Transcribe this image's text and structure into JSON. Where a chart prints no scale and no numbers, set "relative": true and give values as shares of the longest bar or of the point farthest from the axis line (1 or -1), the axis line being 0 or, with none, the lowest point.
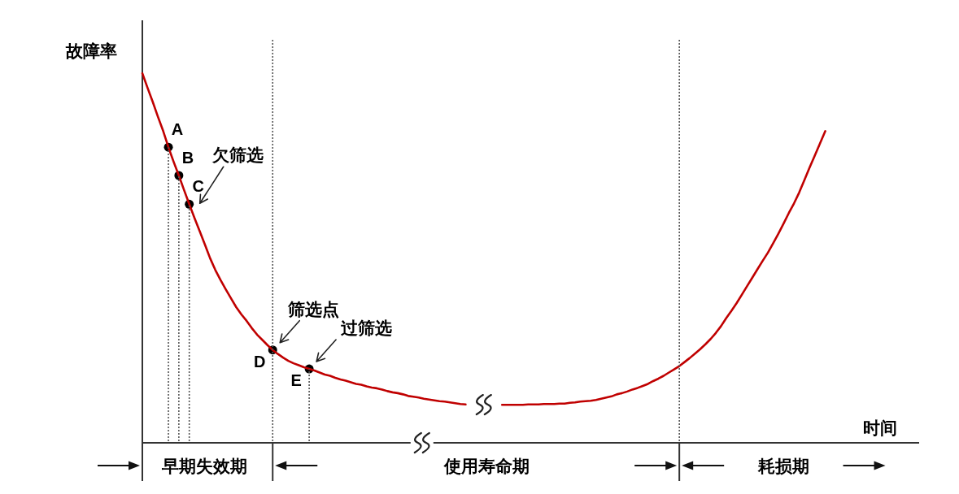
{
  "chart_data": {
    "type": "line",
    "relative": true,
    "tick_labels": "x",
    "ylabel": "故障率",
    "xlabel": "时间",
    "categories": [
      null,
      null,
      null,
      null,
      null,
      null,
      null,
      null,
      null,
      null,
      null,
      null,
      "早期失效期",
      null,
      null,
      null,
      null,
      null,
      null,
      null,
      null,
      null,
      null,
      null,
      null,
      null,
      null,
      null,
      null,
      null,
      null,
      null,
      null,
      null,
      null,
      null,
      null,
      null,
      null,
      null,
      null,
      null,
      null,
      null,
      null,
      null,
      null,
      null,
      null,
      null,
      null,
      null,
      null,
      null,
      null,
      null,
      null,
      null,
      null,
      null,
      null,
      null,
      null,
      null,
      null,
      null,
      "使用寿命期",
      null,
      null,
      null,
      null,
      null,
      null,
      null,
      null,
      null,
      null,
      null,
      null,
      null,
      null,
      null,
      null,
      null,
      null,
      null,
      null,
      null,
      null,
      null,
      null,
      null,
      null,
      null,
      null,
      null,
      null,
      null,
      null,
      null,
      null,
      null,
      null,
      null,
      null,
      null,
      null,
      null,
      null,
      null,
      null,
      null,
      null,
      null,
      null,
      null,
      null,
      null,
      null,
      null,
      null,
      null,
      null,
      "耗损期",
      null,
      null,
      null,
      null,
      null,
      null,
      null,
      null,
      null,
      null,
      null,
      null,
      null,
      null,
      null,
      null,
      null,
      null,
      null,
      null,
      null,
      null,
      null,
      null,
      null,
      null
    ],
    "series": [
      {
        "color": "#c00000",
        "values": [
          0.915,
          0.879,
          0.844,
          0.807,
          0.772,
          0.732,
          0.696,
          0.662,
          0.626,
          0.591,
          0.557,
          0.524,
          0.491,
          0.457,
          0.428,
          0.403,
          0.38,
          0.358,
          0.336,
          0.318,
          0.302,
          0.284,
          0.268,
          0.255,
          0.242,
          0.23,
          0.22,
          0.211,
          0.203,
          0.197,
          0.192,
          0.187,
          0.183,
          0.179,
          0.174,
          0.169,
          0.166,
          0.161,
          0.157,
          0.154,
          0.15,
          0.146,
          0.144,
          0.14,
          0.137,
          0.135,
          0.132,
          0.128,
          0.125,
          0.123,
          0.12,
          0.116,
          0.114,
          0.112,
          0.109,
          0.107,
          0.105,
          0.103,
          0.102,
          0.1,
          0.098,
          0.096,
          0.095,
          null,
          null,
          null,
          null,
          null,
          null,
          0.094,
          0.094,
          0.094,
          0.094,
          0.094,
          0.095,
          0.095,
          0.095,
          0.096,
          0.096,
          0.096,
          0.097,
          0.097,
          0.099,
          0.1,
          0.102,
          0.103,
          0.104,
          0.106,
          0.109,
          0.112,
          0.115,
          0.12,
          0.123,
          0.127,
          0.132,
          0.136,
          0.141,
          0.146,
          0.153,
          0.159,
          0.166,
          0.174,
          0.182,
          0.19,
          0.2,
          0.21,
          0.221,
          0.232,
          0.244,
          0.257,
          0.272,
          0.289,
          0.309,
          0.327,
          0.346,
          0.367,
          0.388,
          0.409,
          0.43,
          0.451,
          0.471,
          0.494,
          0.518,
          0.543,
          0.569,
          0.593,
          0.62,
          0.651,
          0.682,
          0.712,
          0.742,
          0.772,
          null,
          null,
          null,
          null,
          null,
          null,
          null,
          null,
          null,
          null,
          null,
          null,
          null,
          null,
          null,
          null,
          null,
          null
        ]
      },
      {
        "type": "bar",
        "name": "A",
        "color": "#555555",
        "line_style": "dotted",
        "values": [
          null,
          null,
          null,
          null,
          null,
          0.732,
          null,
          null,
          null,
          null,
          null,
          null,
          null,
          null,
          null,
          null,
          null,
          null,
          null,
          null,
          null,
          null,
          null,
          null,
          null,
          null,
          null,
          null,
          null,
          null,
          null,
          null,
          null,
          null,
          null,
          null,
          null,
          null,
          null,
          null,
          null,
          null,
          null,
          null,
          null,
          null,
          null,
          null,
          null,
          null,
          null,
          null,
          null,
          null,
          null,
          null,
          null,
          null,
          null,
          null,
          null,
          null,
          null,
          null,
          null,
          null,
          null,
          null,
          null,
          null,
          null,
          null,
          null,
          null,
          null,
          null,
          null,
          null,
          null,
          null,
          null,
          null,
          null,
          null,
          null,
          null,
          null,
          null,
          null,
          null,
          null,
          null,
          null,
          null,
          null,
          null,
          null,
          null,
          null,
          null,
          null,
          null,
          null,
          null,
          null,
          null,
          null,
          null,
          null,
          null,
          null,
          null,
          null,
          null,
          null,
          null,
          null,
          null,
          null,
          null,
          null,
          null,
          null,
          null,
          null,
          null,
          null,
          null,
          null,
          null,
          null,
          null,
          null,
          null,
          null,
          null,
          null,
          null,
          null,
          null,
          null,
          null,
          null,
          null,
          null,
          null,
          null,
          null,
          null,
          null
        ]
      },
      {
        "type": "bar",
        "name": "B",
        "color": "#555555",
        "line_style": "dotted",
        "values": [
          null,
          null,
          null,
          null,
          null,
          null,
          null,
          0.662,
          null,
          null,
          null,
          null,
          null,
          null,
          null,
          null,
          null,
          null,
          null,
          null,
          null,
          null,
          null,
          null,
          null,
          null,
          null,
          null,
          null,
          null,
          null,
          null,
          null,
          null,
          null,
          null,
          null,
          null,
          null,
          null,
          null,
          null,
          null,
          null,
          null,
          null,
          null,
          null,
          null,
          null,
          null,
          null,
          null,
          null,
          null,
          null,
          null,
          null,
          null,
          null,
          null,
          null,
          null,
          null,
          null,
          null,
          null,
          null,
          null,
          null,
          null,
          null,
          null,
          null,
          null,
          null,
          null,
          null,
          null,
          null,
          null,
          null,
          null,
          null,
          null,
          null,
          null,
          null,
          null,
          null,
          null,
          null,
          null,
          null,
          null,
          null,
          null,
          null,
          null,
          null,
          null,
          null,
          null,
          null,
          null,
          null,
          null,
          null,
          null,
          null,
          null,
          null,
          null,
          null,
          null,
          null,
          null,
          null,
          null,
          null,
          null,
          null,
          null,
          null,
          null,
          null,
          null,
          null,
          null,
          null,
          null,
          null,
          null,
          null,
          null,
          null,
          null,
          null,
          null,
          null,
          null,
          null,
          null,
          null,
          null,
          null,
          null,
          null,
          null,
          null
        ]
      },
      {
        "type": "bar",
        "name": "C",
        "color": "#555555",
        "line_style": "dotted",
        "values": [
          null,
          null,
          null,
          null,
          null,
          null,
          null,
          null,
          null,
          0.591,
          null,
          null,
          null,
          null,
          null,
          null,
          null,
          null,
          null,
          null,
          null,
          null,
          null,
          null,
          null,
          null,
          null,
          null,
          null,
          null,
          null,
          null,
          null,
          null,
          null,
          null,
          null,
          null,
          null,
          null,
          null,
          null,
          null,
          null,
          null,
          null,
          null,
          null,
          null,
          null,
          null,
          null,
          null,
          null,
          null,
          null,
          null,
          null,
          null,
          null,
          null,
          null,
          null,
          null,
          null,
          null,
          null,
          null,
          null,
          null,
          null,
          null,
          null,
          null,
          null,
          null,
          null,
          null,
          null,
          null,
          null,
          null,
          null,
          null,
          null,
          null,
          null,
          null,
          null,
          null,
          null,
          null,
          null,
          null,
          null,
          null,
          null,
          null,
          null,
          null,
          null,
          null,
          null,
          null,
          null,
          null,
          null,
          null,
          null,
          null,
          null,
          null,
          null,
          null,
          null,
          null,
          null,
          null,
          null,
          null,
          null,
          null,
          null,
          null,
          null,
          null,
          null,
          null,
          null,
          null,
          null,
          null,
          null,
          null,
          null,
          null,
          null,
          null,
          null,
          null,
          null,
          null,
          null,
          null,
          null,
          null,
          null,
          null,
          null,
          null
        ]
      },
      {
        "type": "bar",
        "name": "D",
        "color": "#555555",
        "line_style": "dotted",
        "values": [
          null,
          null,
          null,
          null,
          null,
          null,
          null,
          null,
          null,
          null,
          null,
          null,
          null,
          null,
          null,
          null,
          null,
          null,
          null,
          null,
          null,
          null,
          null,
          null,
          null,
          1,
          null,
          null,
          null,
          null,
          null,
          null,
          null,
          null,
          null,
          null,
          null,
          null,
          null,
          null,
          null,
          null,
          null,
          null,
          null,
          null,
          null,
          null,
          null,
          null,
          null,
          null,
          null,
          null,
          null,
          null,
          null,
          null,
          null,
          null,
          null,
          null,
          null,
          null,
          null,
          null,
          null,
          null,
          null,
          null,
          null,
          null,
          null,
          null,
          null,
          null,
          null,
          null,
          null,
          null,
          null,
          null,
          null,
          null,
          null,
          null,
          null,
          null,
          null,
          null,
          null,
          null,
          null,
          null,
          null,
          null,
          null,
          null,
          null,
          null,
          null,
          null,
          null,
          null,
          null,
          null,
          null,
          null,
          null,
          null,
          null,
          null,
          null,
          null,
          null,
          null,
          null,
          null,
          null,
          null,
          null,
          null,
          null,
          null,
          null,
          null,
          null,
          null,
          null,
          null,
          null,
          null,
          null,
          null,
          null,
          null,
          null,
          null,
          null,
          null,
          null,
          null,
          null,
          null,
          null,
          null,
          null,
          null,
          null,
          null
        ]
      },
      {
        "type": "bar",
        "name": "E",
        "color": "#555555",
        "line_style": "dotted",
        "values": [
          null,
          null,
          null,
          null,
          null,
          null,
          null,
          null,
          null,
          null,
          null,
          null,
          null,
          null,
          null,
          null,
          null,
          null,
          null,
          null,
          null,
          null,
          null,
          null,
          null,
          null,
          null,
          null,
          null,
          null,
          null,
          null,
          0.183,
          null,
          null,
          null,
          null,
          null,
          null,
          null,
          null,
          null,
          null,
          null,
          null,
          null,
          null,
          null,
          null,
          null,
          null,
          null,
          null,
          null,
          null,
          null,
          null,
          null,
          null,
          null,
          null,
          null,
          null,
          null,
          null,
          null,
          null,
          null,
          null,
          null,
          null,
          null,
          null,
          null,
          null,
          null,
          null,
          null,
          null,
          null,
          null,
          null,
          null,
          null,
          null,
          null,
          null,
          null,
          null,
          null,
          null,
          null,
          null,
          null,
          null,
          null,
          null,
          null,
          null,
          null,
          null,
          null,
          null,
          null,
          null,
          null,
          null,
          null,
          null,
          null,
          null,
          null,
          null,
          null,
          null,
          null,
          null,
          null,
          null,
          null,
          null,
          null,
          null,
          null,
          null,
          null,
          null,
          null,
          null,
          null,
          null,
          null,
          null,
          null,
          null,
          null,
          null,
          null,
          null,
          null,
          null,
          null,
          null,
          null,
          null,
          null,
          null,
          null,
          null,
          null
        ]
      },
      {
        "type": "bar",
        "color": "#555555",
        "line_style": "dotted",
        "values": [
          null,
          null,
          null,
          null,
          null,
          null,
          null,
          null,
          null,
          null,
          null,
          null,
          null,
          null,
          null,
          null,
          null,
          null,
          null,
          null,
          null,
          null,
          null,
          null,
          null,
          null,
          null,
          null,
          null,
          null,
          null,
          null,
          null,
          null,
          null,
          null,
          null,
          null,
          null,
          null,
          null,
          null,
          null,
          null,
          null,
          null,
          null,
          null,
          null,
          null,
          null,
          null,
          null,
          null,
          null,
          null,
          null,
          null,
          null,
          null,
          null,
          null,
          null,
          null,
          null,
          null,
          null,
          null,
          null,
          null,
          null,
          null,
          null,
          null,
          null,
          null,
          null,
          null,
          null,
          null,
          null,
          null,
          null,
          null,
          null,
          null,
          null,
          null,
          null,
          null,
          null,
          null,
          null,
          null,
          null,
          null,
          null,
          null,
          null,
          null,
          null,
          null,
          null,
          1,
          null,
          null,
          null,
          null,
          null,
          null,
          null,
          null,
          null,
          null,
          null,
          null,
          null,
          null,
          null,
          null,
          null,
          null,
          null,
          null,
          null,
          null,
          null,
          null,
          null,
          null,
          null,
          null,
          null,
          null,
          null,
          null,
          null,
          null,
          null,
          null,
          null,
          null,
          null,
          null,
          null,
          null,
          null,
          null,
          null,
          null
        ]
      },
      {
        "type": "scatter",
        "name": "欠筛选",
        "color": "#000000",
        "marker": "circle",
        "values": [
          null,
          null,
          null,
          null,
          null,
          0.732,
          null,
          0.662,
          null,
          0.591,
          null,
          null,
          null,
          null,
          null,
          null,
          null,
          null,
          null,
          null,
          null,
          null,
          null,
          null,
          null,
          null,
          null,
          null,
          null,
          null,
          null,
          null,
          null,
          null,
          null,
          null,
          null,
          null,
          null,
          null,
          null,
          null,
          null,
          null,
          null,
          null,
          null,
          null,
          null,
          null,
          null,
          null,
          null,
          null,
          null,
          null,
          null,
          null,
          null,
          null,
          null,
          null,
          null,
          null,
          null,
          null,
          null,
          null,
          null,
          null,
          null,
          null,
          null,
          null,
          null,
          null,
          null,
          null,
          null,
          null,
          null,
          null,
          null,
          null,
          null,
          null,
          null,
          null,
          null,
          null,
          null,
          null,
          null,
          null,
          null,
          null,
          null,
          null,
          null,
          null,
          null,
          null,
          null,
          null,
          null,
          null,
          null,
          null,
          null,
          null,
          null,
          null,
          null,
          null,
          null,
          null,
          null,
          null,
          null,
          null,
          null,
          null,
          null,
          null,
          null,
          null,
          null,
          null,
          null,
          null,
          null,
          null,
          null,
          null,
          null,
          null,
          null,
          null,
          null,
          null,
          null,
          null,
          null,
          null,
          null,
          null,
          null,
          null,
          null,
          null
        ]
      },
      {
        "type": "scatter",
        "name": "筛选点",
        "color": "#000000",
        "marker": "circle",
        "values": [
          null,
          null,
          null,
          null,
          null,
          null,
          null,
          null,
          null,
          null,
          null,
          null,
          null,
          null,
          null,
          null,
          null,
          null,
          null,
          null,
          null,
          null,
          null,
          null,
          null,
          0.23,
          null,
          null,
          null,
          null,
          null,
          null,
          null,
          null,
          null,
          null,
          null,
          null,
          null,
          null,
          null,
          null,
          null,
          null,
          null,
          null,
          null,
          null,
          null,
          null,
          null,
          null,
          null,
          null,
          null,
          null,
          null,
          null,
          null,
          null,
          null,
          null,
          null,
          null,
          null,
          null,
          null,
          null,
          null,
          null,
          null,
          null,
          null,
          null,
          null,
          null,
          null,
          null,
          null,
          null,
          null,
          null,
          null,
          null,
          null,
          null,
          null,
          null,
          null,
          null,
          null,
          null,
          null,
          null,
          null,
          null,
          null,
          null,
          null,
          null,
          null,
          null,
          null,
          null,
          null,
          null,
          null,
          null,
          null,
          null,
          null,
          null,
          null,
          null,
          null,
          null,
          null,
          null,
          null,
          null,
          null,
          null,
          null,
          null,
          null,
          null,
          null,
          null,
          null,
          null,
          null,
          null,
          null,
          null,
          null,
          null,
          null,
          null,
          null,
          null,
          null,
          null,
          null,
          null,
          null,
          null,
          null,
          null,
          null,
          null
        ]
      },
      {
        "type": "scatter",
        "name": "过筛选",
        "color": "#000000",
        "marker": "circle",
        "values": [
          null,
          null,
          null,
          null,
          null,
          null,
          null,
          null,
          null,
          null,
          null,
          null,
          null,
          null,
          null,
          null,
          null,
          null,
          null,
          null,
          null,
          null,
          null,
          null,
          null,
          null,
          null,
          null,
          null,
          null,
          null,
          null,
          0.183,
          null,
          null,
          null,
          null,
          null,
          null,
          null,
          null,
          null,
          null,
          null,
          null,
          null,
          null,
          null,
          null,
          null,
          null,
          null,
          null,
          null,
          null,
          null,
          null,
          null,
          null,
          null,
          null,
          null,
          null,
          null,
          null,
          null,
          null,
          null,
          null,
          null,
          null,
          null,
          null,
          null,
          null,
          null,
          null,
          null,
          null,
          null,
          null,
          null,
          null,
          null,
          null,
          null,
          null,
          null,
          null,
          null,
          null,
          null,
          null,
          null,
          null,
          null,
          null,
          null,
          null,
          null,
          null,
          null,
          null,
          null,
          null,
          null,
          null,
          null,
          null,
          null,
          null,
          null,
          null,
          null,
          null,
          null,
          null,
          null,
          null,
          null,
          null,
          null,
          null,
          null,
          null,
          null,
          null,
          null,
          null,
          null,
          null,
          null,
          null,
          null,
          null,
          null,
          null,
          null,
          null,
          null,
          null,
          null,
          null,
          null,
          null,
          null,
          null,
          null,
          null,
          null
        ]
      }
    ]
  }
}
